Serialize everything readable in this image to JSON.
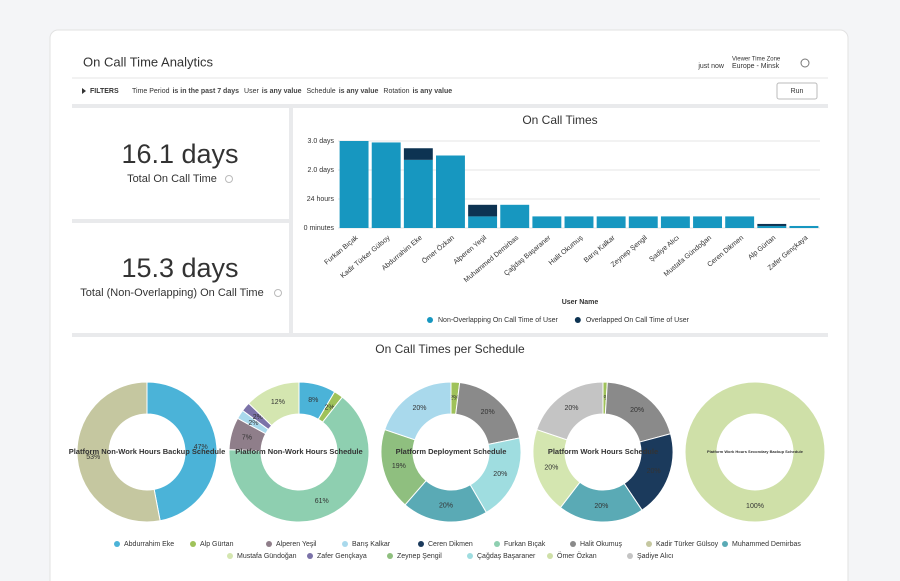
{
  "header": {
    "title": "On Call Time Analytics",
    "updated": "just now",
    "timezone_label": "Viewer Time Zone",
    "timezone": "Europe - Minsk"
  },
  "filters": {
    "label": "FILTERS",
    "items": [
      {
        "name": "Time Period",
        "op": "is in the past 7 days"
      },
      {
        "name": "User",
        "op": "is any value"
      },
      {
        "name": "Schedule",
        "op": "is any value"
      },
      {
        "name": "Rotation",
        "op": "is any value"
      }
    ],
    "run": "Run"
  },
  "kpis": [
    {
      "value": "16.1 days",
      "label": "Total On Call Time"
    },
    {
      "value": "15.3 days",
      "label": "Total (Non-Overlapping) On Call Time"
    }
  ],
  "section_title": "On Call Times per Schedule",
  "legend": [
    {
      "name": "Abdurrahim Eke",
      "color": "#4bb3d8"
    },
    {
      "name": "Alp Gürtan",
      "color": "#9fc25a"
    },
    {
      "name": "Alperen Yeşil",
      "color": "#8f7e8a"
    },
    {
      "name": "Barış Kalkar",
      "color": "#a9d9ec"
    },
    {
      "name": "Ceren Dikmen",
      "color": "#1b3a5c"
    },
    {
      "name": "Furkan Bıçak",
      "color": "#8ecfb0"
    },
    {
      "name": "Halit Okumuş",
      "color": "#8a8a8a"
    },
    {
      "name": "Kadir Türker Gülsoy",
      "color": "#c5c7a0"
    },
    {
      "name": "Muhammed Demirbas",
      "color": "#5aaab5"
    },
    {
      "name": "Mustafa Gündoğan",
      "color": "#d4e6b0"
    },
    {
      "name": "Zafer Gençkaya",
      "color": "#7b72a8"
    },
    {
      "name": "Zeynep Şengil",
      "color": "#8fbf7f"
    },
    {
      "name": "Çağdaş Başaraner",
      "color": "#9fdde0"
    },
    {
      "name": "Ömer Özkan",
      "color": "#cfe0a8"
    },
    {
      "name": "Şadiye Alıcı",
      "color": "#c4c4c4"
    }
  ],
  "chart_data": [
    {
      "type": "bar",
      "title": "On Call Times",
      "x_label": "User Name",
      "categories": [
        "Furkan Bıçak",
        "Kadir Türker Gülsoy",
        "Abdurrahim Eke",
        "Ömer Özkan",
        "Alperen Yeşil",
        "Muhammed Demirbas",
        "Çağdaş Başaraner",
        "Halit Okumuş",
        "Barış Kalkar",
        "Zeynep Şengil",
        "Şadiye Alıcı",
        "Mustafa Gündoğan",
        "Ceren Dikmen",
        "Alp Gürtan",
        "Zafer Gençkaya"
      ],
      "series": [
        {
          "name": "Non-Overlapping On Call Time of User",
          "color": "#1797c0",
          "values": [
            3.0,
            2.95,
            2.35,
            2.5,
            0.4,
            0.8,
            0.4,
            0.4,
            0.4,
            0.4,
            0.4,
            0.4,
            0.4,
            0.07,
            0.07
          ]
        },
        {
          "name": "Overlapped On Call Time of User",
          "color": "#0d3352",
          "values": [
            0,
            0,
            0.4,
            0,
            0.4,
            0,
            0,
            0,
            0,
            0,
            0,
            0,
            0,
            0.07,
            0
          ]
        }
      ],
      "ylim": [
        0,
        3.2
      ],
      "yticks": [
        {
          "value": 0,
          "label": "0 minutes"
        },
        {
          "value": 1,
          "label": "24 hours"
        },
        {
          "value": 2,
          "label": "2.0 days"
        },
        {
          "value": 3,
          "label": "3.0 days"
        }
      ],
      "grid": true
    },
    {
      "type": "pie",
      "title": "Platform Non-Work Hours Backup Schedule",
      "categories": [
        "Abdurrahim Eke",
        "Kadir Türker Gülsoy"
      ],
      "values": [
        47,
        53
      ],
      "value_labels": [
        "47%",
        "53%"
      ],
      "colors": [
        "#4bb3d8",
        "#c5c7a0"
      ]
    },
    {
      "type": "pie",
      "title": "Platform Non-Work Hours Schedule",
      "categories": [
        "Abdurrahim Eke",
        "Alp Gürtan",
        "Furkan Bıçak",
        "Alperen Yeşil",
        "Barış Kalkar",
        "Zafer Gençkaya",
        "Mustafa Gündoğan"
      ],
      "values": [
        8,
        2,
        61,
        7,
        2,
        2,
        12
      ],
      "value_labels": [
        "8%",
        "2%",
        "61%",
        "7%",
        "2%",
        "2%",
        "12%"
      ],
      "colors": [
        "#4bb3d8",
        "#9fc25a",
        "#8ecfb0",
        "#8f7e8a",
        "#a9d9ec",
        "#7b72a8",
        "#d4e6b0"
      ]
    },
    {
      "type": "pie",
      "title": "Platform Deployment Schedule",
      "categories": [
        "Alp Gürtan",
        "Halit Okumuş",
        "Çağdaş Başaraner",
        "Muhammed Demirbas",
        "Zeynep Şengil",
        "Barış Kalkar"
      ],
      "values": [
        2,
        20,
        20,
        20,
        19,
        20
      ],
      "value_labels": [
        "2%",
        "20%",
        "20%",
        "20%",
        "19%",
        "20%"
      ],
      "colors": [
        "#9fc25a",
        "#8a8a8a",
        "#9fdde0",
        "#5aaab5",
        "#8fbf7f",
        "#a9d9ec"
      ]
    },
    {
      "type": "pie",
      "title": "Platform Work Hours Schedule",
      "categories": [
        "Alp Gürtan",
        "Halit Okumuş",
        "Ceren Dikmen",
        "Muhammed Demirbas",
        "Mustafa Gündoğan",
        "Şadiye Alıcı"
      ],
      "values": [
        1,
        20,
        20,
        20,
        20,
        20
      ],
      "value_labels": [
        "1%",
        "20%",
        "20%",
        "20%",
        "20%",
        "20%"
      ],
      "colors": [
        "#9fc25a",
        "#8a8a8a",
        "#1b3a5c",
        "#5aaab5",
        "#d4e6b0",
        "#c4c4c4"
      ]
    },
    {
      "type": "pie",
      "title": "Platform Work Hours Secondary Backup Schedule",
      "categories": [
        "Ömer Özkan"
      ],
      "values": [
        100
      ],
      "value_labels": [
        "100%"
      ],
      "colors": [
        "#cfe0a8"
      ]
    }
  ]
}
